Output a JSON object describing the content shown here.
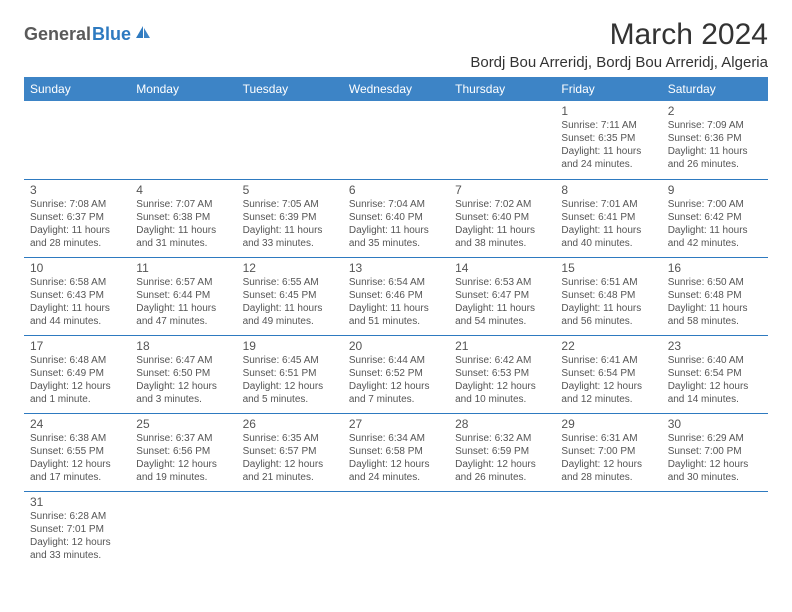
{
  "logo": {
    "text1": "General",
    "text2": "Blue"
  },
  "title": "March 2024",
  "subtitle": "Bordj Bou Arreridj, Bordj Bou Arreridj, Algeria",
  "colors": {
    "header_bg": "#3d84c6",
    "header_text": "#ffffff",
    "border": "#2e7ac0",
    "text": "#555555",
    "title": "#333333",
    "logo_blue": "#2e7ac0",
    "logo_gray": "#5a5a5a"
  },
  "weekdays": [
    "Sunday",
    "Monday",
    "Tuesday",
    "Wednesday",
    "Thursday",
    "Friday",
    "Saturday"
  ],
  "weeks": [
    [
      null,
      null,
      null,
      null,
      null,
      {
        "n": "1",
        "sr": "7:11 AM",
        "ss": "6:35 PM",
        "dl": "11 hours and 24 minutes."
      },
      {
        "n": "2",
        "sr": "7:09 AM",
        "ss": "6:36 PM",
        "dl": "11 hours and 26 minutes."
      }
    ],
    [
      {
        "n": "3",
        "sr": "7:08 AM",
        "ss": "6:37 PM",
        "dl": "11 hours and 28 minutes."
      },
      {
        "n": "4",
        "sr": "7:07 AM",
        "ss": "6:38 PM",
        "dl": "11 hours and 31 minutes."
      },
      {
        "n": "5",
        "sr": "7:05 AM",
        "ss": "6:39 PM",
        "dl": "11 hours and 33 minutes."
      },
      {
        "n": "6",
        "sr": "7:04 AM",
        "ss": "6:40 PM",
        "dl": "11 hours and 35 minutes."
      },
      {
        "n": "7",
        "sr": "7:02 AM",
        "ss": "6:40 PM",
        "dl": "11 hours and 38 minutes."
      },
      {
        "n": "8",
        "sr": "7:01 AM",
        "ss": "6:41 PM",
        "dl": "11 hours and 40 minutes."
      },
      {
        "n": "9",
        "sr": "7:00 AM",
        "ss": "6:42 PM",
        "dl": "11 hours and 42 minutes."
      }
    ],
    [
      {
        "n": "10",
        "sr": "6:58 AM",
        "ss": "6:43 PM",
        "dl": "11 hours and 44 minutes."
      },
      {
        "n": "11",
        "sr": "6:57 AM",
        "ss": "6:44 PM",
        "dl": "11 hours and 47 minutes."
      },
      {
        "n": "12",
        "sr": "6:55 AM",
        "ss": "6:45 PM",
        "dl": "11 hours and 49 minutes."
      },
      {
        "n": "13",
        "sr": "6:54 AM",
        "ss": "6:46 PM",
        "dl": "11 hours and 51 minutes."
      },
      {
        "n": "14",
        "sr": "6:53 AM",
        "ss": "6:47 PM",
        "dl": "11 hours and 54 minutes."
      },
      {
        "n": "15",
        "sr": "6:51 AM",
        "ss": "6:48 PM",
        "dl": "11 hours and 56 minutes."
      },
      {
        "n": "16",
        "sr": "6:50 AM",
        "ss": "6:48 PM",
        "dl": "11 hours and 58 minutes."
      }
    ],
    [
      {
        "n": "17",
        "sr": "6:48 AM",
        "ss": "6:49 PM",
        "dl": "12 hours and 1 minute."
      },
      {
        "n": "18",
        "sr": "6:47 AM",
        "ss": "6:50 PM",
        "dl": "12 hours and 3 minutes."
      },
      {
        "n": "19",
        "sr": "6:45 AM",
        "ss": "6:51 PM",
        "dl": "12 hours and 5 minutes."
      },
      {
        "n": "20",
        "sr": "6:44 AM",
        "ss": "6:52 PM",
        "dl": "12 hours and 7 minutes."
      },
      {
        "n": "21",
        "sr": "6:42 AM",
        "ss": "6:53 PM",
        "dl": "12 hours and 10 minutes."
      },
      {
        "n": "22",
        "sr": "6:41 AM",
        "ss": "6:54 PM",
        "dl": "12 hours and 12 minutes."
      },
      {
        "n": "23",
        "sr": "6:40 AM",
        "ss": "6:54 PM",
        "dl": "12 hours and 14 minutes."
      }
    ],
    [
      {
        "n": "24",
        "sr": "6:38 AM",
        "ss": "6:55 PM",
        "dl": "12 hours and 17 minutes."
      },
      {
        "n": "25",
        "sr": "6:37 AM",
        "ss": "6:56 PM",
        "dl": "12 hours and 19 minutes."
      },
      {
        "n": "26",
        "sr": "6:35 AM",
        "ss": "6:57 PM",
        "dl": "12 hours and 21 minutes."
      },
      {
        "n": "27",
        "sr": "6:34 AM",
        "ss": "6:58 PM",
        "dl": "12 hours and 24 minutes."
      },
      {
        "n": "28",
        "sr": "6:32 AM",
        "ss": "6:59 PM",
        "dl": "12 hours and 26 minutes."
      },
      {
        "n": "29",
        "sr": "6:31 AM",
        "ss": "7:00 PM",
        "dl": "12 hours and 28 minutes."
      },
      {
        "n": "30",
        "sr": "6:29 AM",
        "ss": "7:00 PM",
        "dl": "12 hours and 30 minutes."
      }
    ],
    [
      {
        "n": "31",
        "sr": "6:28 AM",
        "ss": "7:01 PM",
        "dl": "12 hours and 33 minutes."
      },
      null,
      null,
      null,
      null,
      null,
      null
    ]
  ],
  "labels": {
    "sunrise": "Sunrise:",
    "sunset": "Sunset:",
    "daylight": "Daylight:"
  }
}
